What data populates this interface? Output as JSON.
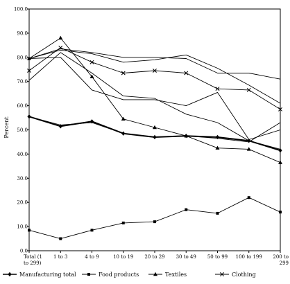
{
  "chart_data": {
    "type": "line",
    "title": "",
    "xlabel": "",
    "ylabel": "Percent",
    "ylim": [
      0,
      100
    ],
    "yticks": [
      "0.0",
      "10.0",
      "20.0",
      "30.0",
      "40.0",
      "50.0",
      "60.0",
      "70.0",
      "80.0",
      "90.0",
      "100.0"
    ],
    "grid": false,
    "legend_position": "bottom",
    "categories": [
      [
        "Total (1",
        "to 299)"
      ],
      [
        "1 to 3"
      ],
      [
        "4 to 9"
      ],
      [
        "10 to 19"
      ],
      [
        "20 to 29"
      ],
      [
        "30 to 49"
      ],
      [
        "50 to 99"
      ],
      [
        "100 to 199"
      ],
      [
        "200 to",
        "299"
      ]
    ],
    "series": [
      {
        "name": "Manufacturing total",
        "marker": "diamond",
        "bold": true,
        "values": [
          55.5,
          51.5,
          53.5,
          48.5,
          47.0,
          47.5,
          47.0,
          45.5,
          41.5
        ]
      },
      {
        "name": "Food products",
        "marker": "square",
        "bold": false,
        "values": [
          8.5,
          5.0,
          8.5,
          11.5,
          12.0,
          17.0,
          15.5,
          22.0,
          16.0
        ]
      },
      {
        "name": "Textiles",
        "marker": "triangle",
        "bold": false,
        "values": [
          79.5,
          88.0,
          72.0,
          54.5,
          51.0,
          47.5,
          42.5,
          42.0,
          36.5
        ]
      },
      {
        "name": "Clothing",
        "marker": "x",
        "bold": false,
        "values": [
          74.5,
          84.0,
          78.0,
          73.5,
          74.5,
          73.5,
          67.0,
          66.5,
          58.5
        ]
      },
      {
        "name": "",
        "marker": "none",
        "bold": false,
        "values": [
          79.5,
          83.5,
          82.0,
          80.0,
          80.0,
          79.5,
          73.5,
          73.5,
          71.0
        ]
      },
      {
        "name": "",
        "marker": "none",
        "bold": false,
        "values": [
          79.5,
          83.0,
          81.5,
          78.0,
          79.0,
          81.0,
          75.5,
          68.5,
          61.0
        ]
      },
      {
        "name": "",
        "marker": "none",
        "bold": false,
        "values": [
          70.5,
          82.0,
          73.5,
          64.0,
          63.0,
          56.5,
          53.0,
          45.5,
          42.0
        ]
      },
      {
        "name": "",
        "marker": "none",
        "bold": false,
        "values": [
          55.5,
          52.0,
          53.0,
          48.5,
          47.0,
          47.5,
          46.5,
          45.0,
          53.0
        ]
      },
      {
        "name": "",
        "marker": "none",
        "bold": false,
        "values": [
          79.5,
          80.0,
          66.5,
          62.5,
          62.5,
          60.0,
          65.5,
          46.0,
          50.0
        ]
      }
    ]
  }
}
